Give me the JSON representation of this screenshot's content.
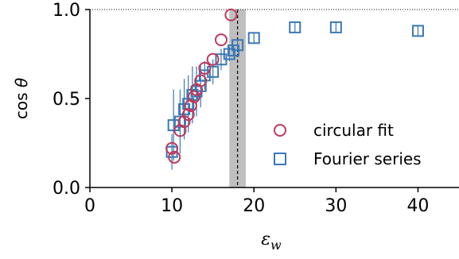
{
  "chart_data": {
    "type": "scatter",
    "xlabel": "ε",
    "xlabel_sub": "w",
    "ylabel_prefix": "cos",
    "ylabel_symbol": "θ",
    "xlim": [
      0,
      45
    ],
    "ylim": [
      0.0,
      1.0
    ],
    "x_ticks": [
      0,
      10,
      20,
      30,
      40
    ],
    "x_tick_labels": [
      "0",
      "10",
      "20",
      "30",
      "40"
    ],
    "y_ticks": [
      0.0,
      0.5,
      1.0
    ],
    "y_tick_labels": [
      "0.0",
      "0.5",
      "1.0"
    ],
    "grid": false,
    "legend_position": "lower-right",
    "reference_line_y": 1.0,
    "vertical_line_x": 18,
    "shaded_band_x": [
      17,
      19
    ],
    "colors": {
      "circular_fit": "#c0395a",
      "fourier_series": "#3a78b6",
      "error_bar": "#3a78b6",
      "band": "#bfbfbf",
      "axis": "#000000"
    },
    "series": [
      {
        "name": "circular fit",
        "marker": "circle",
        "points": [
          {
            "x": 10.0,
            "y": 0.22
          },
          {
            "x": 10.3,
            "y": 0.17
          },
          {
            "x": 11.0,
            "y": 0.32
          },
          {
            "x": 11.5,
            "y": 0.37
          },
          {
            "x": 12.0,
            "y": 0.41
          },
          {
            "x": 12.3,
            "y": 0.46
          },
          {
            "x": 12.7,
            "y": 0.51
          },
          {
            "x": 13.0,
            "y": 0.55
          },
          {
            "x": 13.5,
            "y": 0.6
          },
          {
            "x": 14.0,
            "y": 0.67
          },
          {
            "x": 15.0,
            "y": 0.72
          },
          {
            "x": 16.0,
            "y": 0.83
          },
          {
            "x": 17.2,
            "y": 0.97
          }
        ]
      },
      {
        "name": "Fourier series",
        "marker": "square",
        "points": [
          {
            "x": 10.0,
            "y": 0.2,
            "err": 0.1
          },
          {
            "x": 10.2,
            "y": 0.35,
            "err": 0.2
          },
          {
            "x": 11.0,
            "y": 0.37,
            "err": 0.18
          },
          {
            "x": 11.5,
            "y": 0.44,
            "err": 0.17
          },
          {
            "x": 12.0,
            "y": 0.47,
            "err": 0.16
          },
          {
            "x": 12.5,
            "y": 0.52,
            "err": 0.16
          },
          {
            "x": 13.0,
            "y": 0.54,
            "err": 0.14
          },
          {
            "x": 13.5,
            "y": 0.57,
            "err": 0.12
          },
          {
            "x": 14.0,
            "y": 0.63,
            "err": 0.08
          },
          {
            "x": 15.0,
            "y": 0.65,
            "err": 0.07
          },
          {
            "x": 16.0,
            "y": 0.72,
            "err": 0.06
          },
          {
            "x": 17.0,
            "y": 0.75,
            "err": 0.04
          },
          {
            "x": 17.5,
            "y": 0.77,
            "err": 0.03
          },
          {
            "x": 18.0,
            "y": 0.8,
            "err": 0.03
          },
          {
            "x": 20.0,
            "y": 0.84,
            "err": 0.03
          },
          {
            "x": 25.0,
            "y": 0.9,
            "err": 0.03
          },
          {
            "x": 30.0,
            "y": 0.9,
            "err": 0.03
          },
          {
            "x": 40.0,
            "y": 0.88,
            "err": 0.03
          }
        ]
      }
    ]
  }
}
